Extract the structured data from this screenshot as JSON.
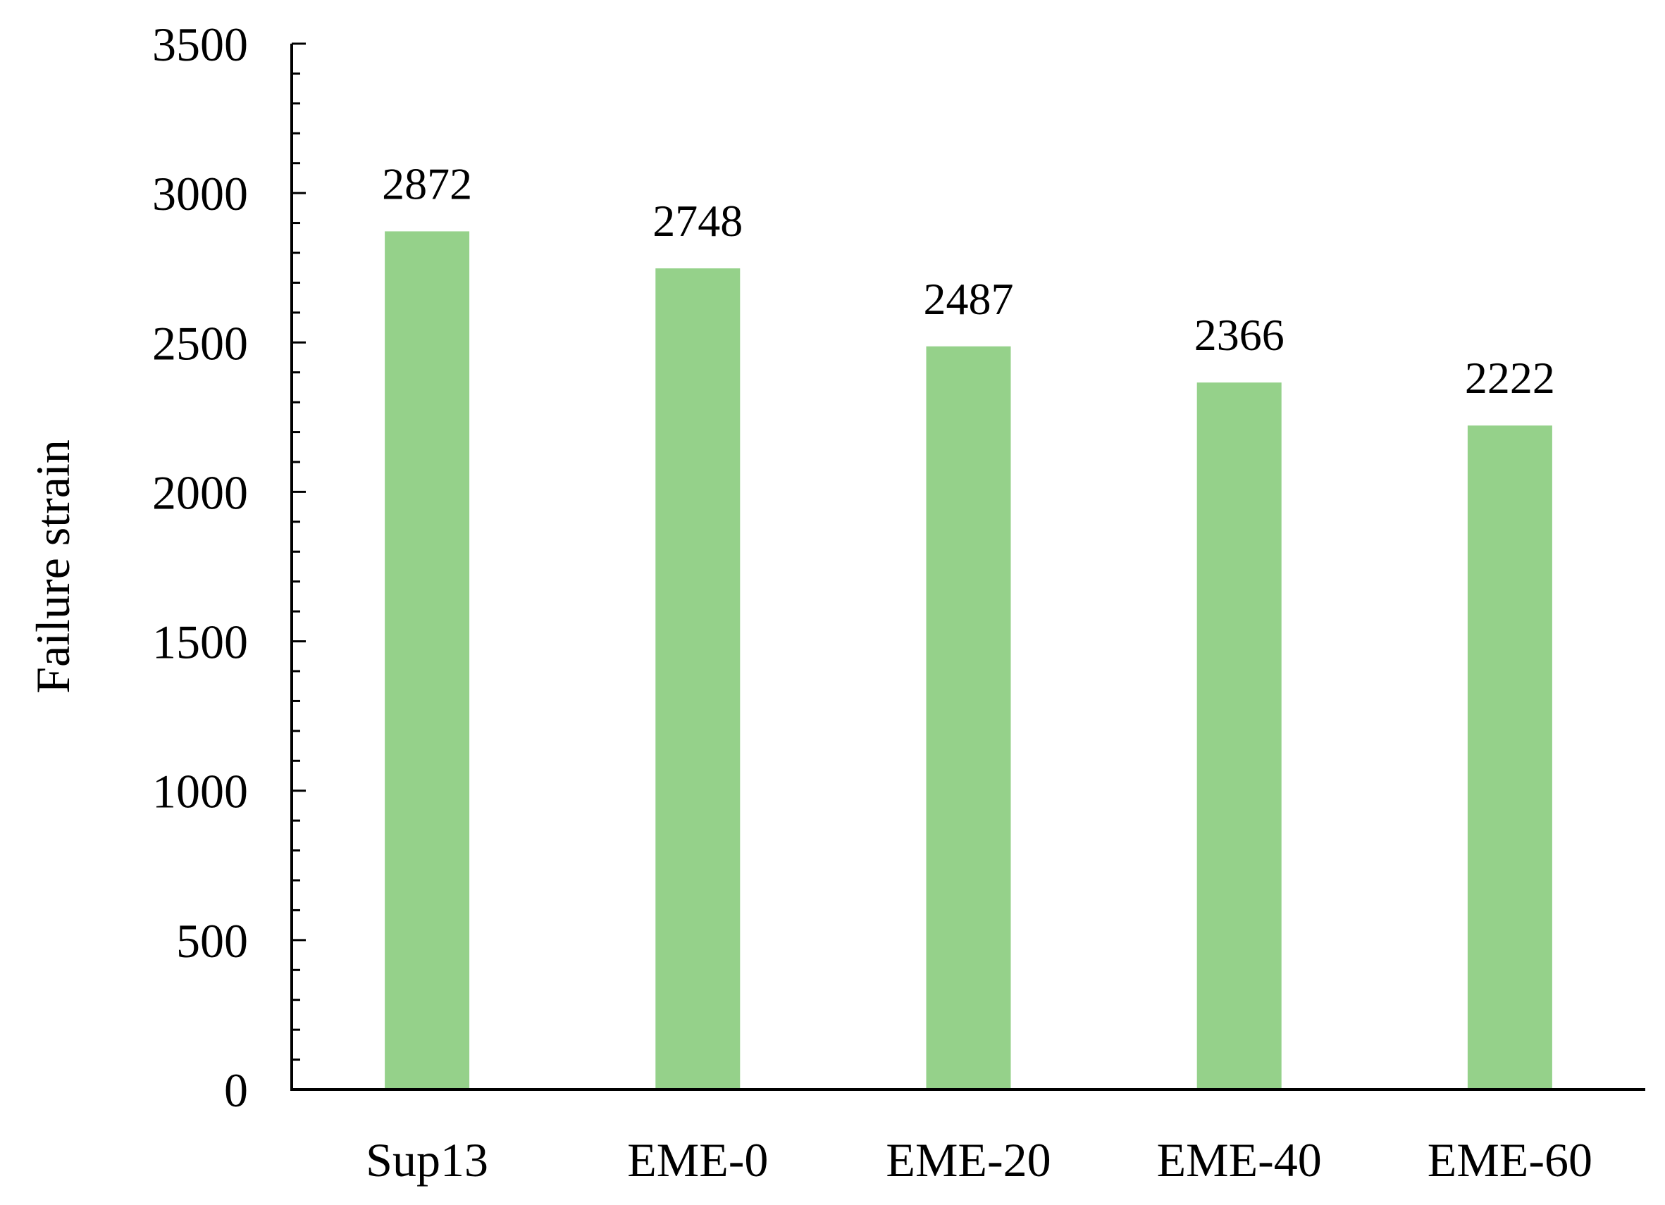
{
  "chart_data": {
    "type": "bar",
    "categories": [
      "Sup13",
      "EME-0",
      "EME-20",
      "EME-40",
      "EME-60"
    ],
    "values": [
      2872,
      2748,
      2487,
      2366,
      2222
    ],
    "data_labels": [
      "2872",
      "2748",
      "2487",
      "2366",
      "2222"
    ],
    "title": "",
    "xlabel": "",
    "ylabel": "Failure strain",
    "ylim": [
      0,
      3500
    ],
    "y_major_step": 500,
    "y_minor_step": 100,
    "y_tick_labels": [
      "0",
      "500",
      "1000",
      "1500",
      "2000",
      "2500",
      "3000",
      "3500"
    ],
    "grid": false,
    "legend": "none",
    "colors": {
      "bar": "#95d18a",
      "axis": "#000000",
      "text": "#000000"
    }
  }
}
